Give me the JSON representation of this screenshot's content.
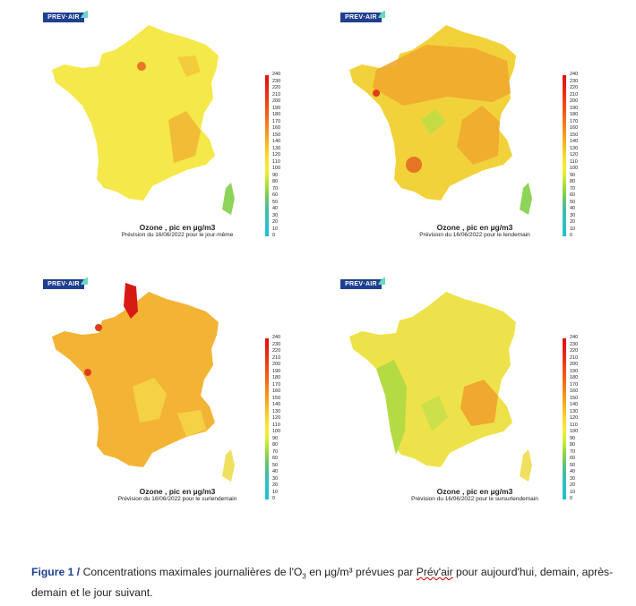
{
  "logo_text": "PREV·AIR",
  "legend": {
    "values": [
      240,
      230,
      220,
      210,
      200,
      190,
      180,
      170,
      160,
      150,
      140,
      130,
      120,
      110,
      100,
      90,
      80,
      70,
      60,
      50,
      40,
      30,
      20,
      10,
      0
    ],
    "colors_top_to_bottom": [
      "#e01010",
      "#e41812",
      "#e82414",
      "#ec3214",
      "#f04214",
      "#f25216",
      "#f46218",
      "#f5781a",
      "#f68c1c",
      "#f7a020",
      "#f8b424",
      "#f9c828",
      "#fad82c",
      "#fae430",
      "#f4ee30",
      "#d8ee34",
      "#b8e43a",
      "#98d840",
      "#78cc58",
      "#5cc480",
      "#44bca0",
      "#36c0b8",
      "#2cc0c4",
      "#26c0c8",
      "#22bfcc"
    ]
  },
  "panels": [
    {
      "title": "Ozone , pic en µg/m3",
      "subtitle": "Prévision du 16/06/2022 pour le jour-même",
      "base_color": "#f5e84a"
    },
    {
      "title": "Ozone , pic en µg/m3",
      "subtitle": "Prévision du 16/06/2022 pour le lendemain",
      "base_color": "#f2d23a"
    },
    {
      "title": "Ozone , pic en µg/m3",
      "subtitle": "Prévision du 16/06/2022 pour le surlendemain",
      "base_color": "#f3b436"
    },
    {
      "title": "Ozone , pic en µg/m3",
      "subtitle": "Prévision du 16/06/2022 pour le sursurlendemain",
      "base_color": "#eee24a"
    }
  ],
  "caption": {
    "prefix": "Figure 1 /",
    "text_before": " Concentrations maximales journalières de l'O",
    "subscript": "3",
    "text_middle": " en µg/m³ prévues par ",
    "underlined": "Prév'air",
    "text_after": " pour aujourd'hui, demain, après-demain et le jour suivant."
  }
}
